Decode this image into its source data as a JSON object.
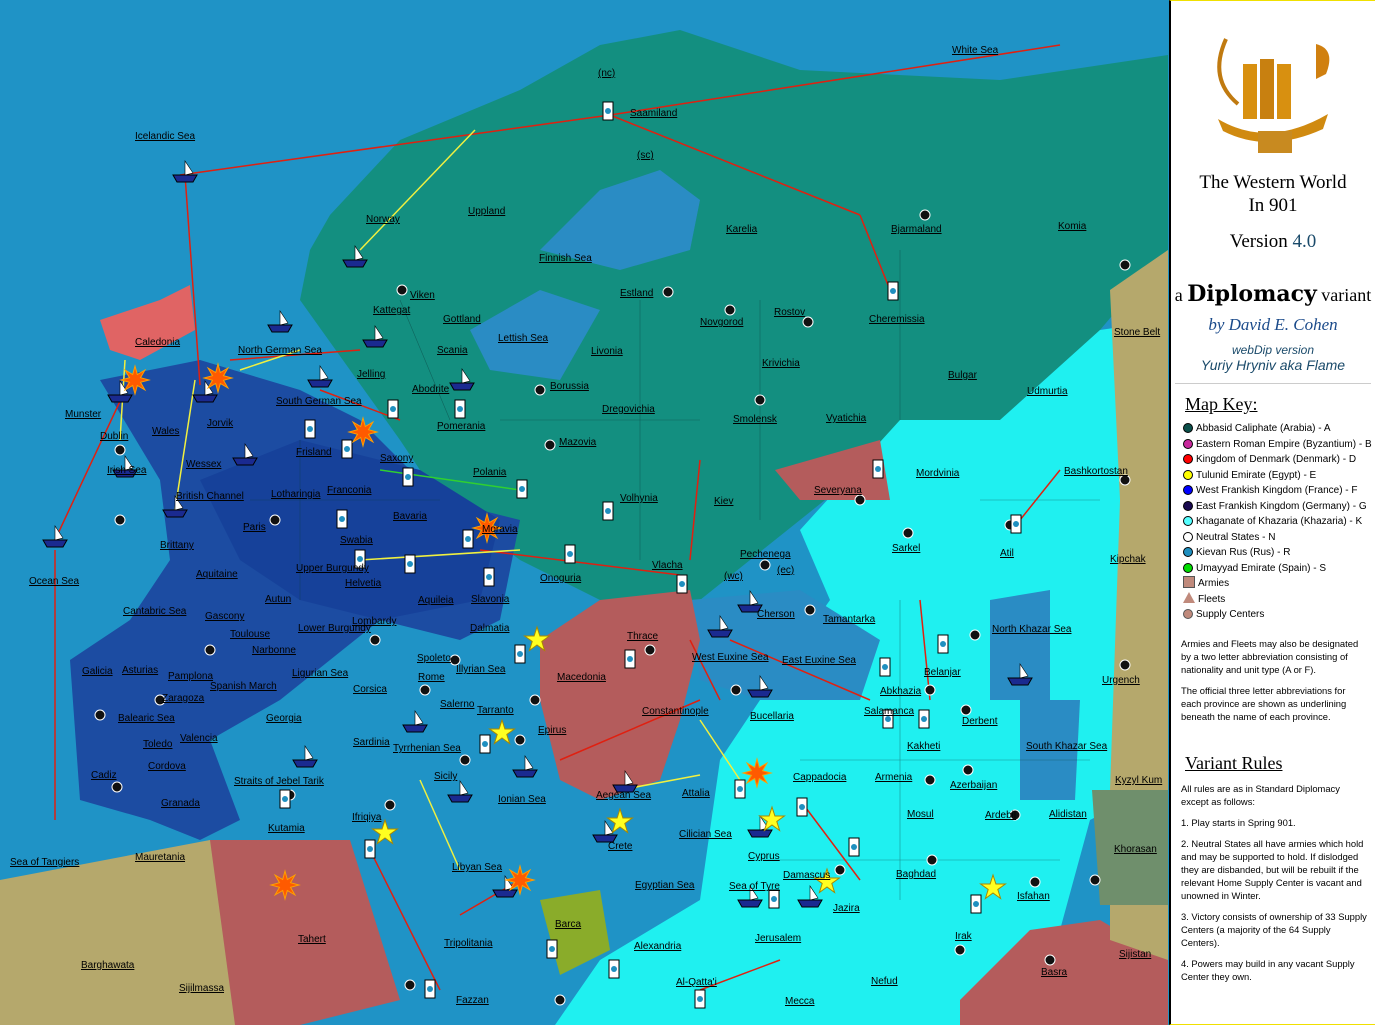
{
  "sidebar": {
    "title_line1": "The Western World",
    "title_line2": "In 901",
    "version_label": "Version",
    "version_number": "4.0",
    "diplomacy_prefix": "a",
    "diplomacy_word": "Diplomacy",
    "diplomacy_suffix": "variant",
    "author": "by David E. Cohen",
    "webdip_label": "webDip version",
    "webdip_author": "Yuriy Hryniv aka Flame",
    "map_key_heading": "Map Key:",
    "key_items": [
      {
        "label": "Abbasid Caliphate (Arabia) - A",
        "color": "#0b4f4a"
      },
      {
        "label": "Eastern Roman Empire (Byzantium) - B",
        "color": "#c8289c"
      },
      {
        "label": "Kingdom of Denmark (Denmark) - D",
        "color": "#ff0000"
      },
      {
        "label": "Tulunid Emirate (Egypt) - E",
        "color": "#ffff00"
      },
      {
        "label": "West Frankish Kingdom (France) - F",
        "color": "#0000ff"
      },
      {
        "label": "East Frankish Kingdom (Germany) - G",
        "color": "#1a0a50"
      },
      {
        "label": "Khaganate of Khazaria (Khazaria) - K",
        "color": "#55ffff"
      },
      {
        "label": "Neutral States - N",
        "color": "#ffffff"
      },
      {
        "label": "Kievan Rus (Rus) - R",
        "color": "#1f8fbf"
      },
      {
        "label": "Umayyad Emirate (Spain) - S",
        "color": "#00dd00"
      }
    ],
    "legend_armies": "Armies",
    "legend_fleets": "Fleets",
    "legend_supply": "Supply Centers",
    "note1": "Armies and Fleets may also be designated by a two letter abbreviation consisting of nationality and unit type (A or F).",
    "note2": "The official three letter abbreviations for each province are shown as underlining beneath the name of each province.",
    "rules_heading": "Variant Rules",
    "rules_intro": "All rules are as in Standard Diplomacy except as follows:",
    "rules": [
      "1. Play starts in Spring 901.",
      "2. Neutral States all have armies which hold and may be supported to hold.  If dislodged they are disbanded, but will be rebuilt if the relevant Home Supply Center is vacant and unowned in Winter.",
      "3. Victory consists of ownership of 33 Supply Centers (a majority of the 64 Supply Centers).",
      "4. Powers may build in any vacant Supply Center they own."
    ]
  },
  "map": {
    "colors": {
      "ocean": "#1f93c6",
      "inner_sea": "#2a8cc4",
      "rus": "#138f80",
      "khazaria": "#1ff0f0",
      "frankish": "#1c4ca2",
      "frankish_dark": "#16419a",
      "byzantium": "#b45c5c",
      "neutral": "#b5a86c",
      "khorasan": "#6f8f6c",
      "barca": "#8aac2a",
      "caledonia": "#e06464",
      "orders": "#e02010",
      "support": "#f0f040"
    },
    "provinces": [
      "White Sea",
      "(nc)",
      "Saamiland",
      "(sc)",
      "Icelandic Sea",
      "Norway",
      "Uppland",
      "Finnish Sea",
      "Karelia",
      "Bjarmaland",
      "Komia",
      "Viken",
      "Kattegat",
      "Gottland",
      "Scania",
      "Lettish Sea",
      "Estland",
      "Novgorod",
      "Rostov",
      "Cheremissia",
      "Livonia",
      "Krivichia",
      "Stone Belt",
      "Caledonia",
      "North German Sea",
      "Jelling",
      "Abodrite",
      "Borussia",
      "Bulgar",
      "Udmurtia",
      "Munster",
      "Dublin",
      "Wales",
      "Irish Sea",
      "Wessex",
      "Jorvik",
      "South German Sea",
      "Frisland",
      "Saxony",
      "Pomerania",
      "Polania",
      "Mazovia",
      "Dregovichia",
      "Smolensk",
      "Vyatichia",
      "Mordvinia",
      "Bashkortostan",
      "British Channel",
      "Lotharingia",
      "Franconia",
      "Bavaria",
      "Volhynia",
      "Kiev",
      "Severyana",
      "Paris",
      "Brittany",
      "Swabia",
      "Moravia",
      "Sarkel",
      "Atil",
      "Kipchak",
      "Ocean Sea",
      "Aquitaine",
      "Upper Burgundy",
      "Helvetia",
      "Slavonia",
      "Onoguria",
      "Vlacha",
      "Pechenega",
      "(wc)",
      "(ec)",
      "Autun",
      "Aquileia",
      "Cantabric Sea",
      "Gascony",
      "Toulouse",
      "Lower Burgundy",
      "Lombardy",
      "Dalmatia",
      "Thrace",
      "Cherson",
      "Tamantarka",
      "Narbonne",
      "Spoleto",
      "North Khazar Sea",
      "Galicia",
      "Asturias",
      "Pamplona",
      "Ligurian Sea",
      "Illyrian Sea",
      "Rome",
      "Macedonia",
      "West Euxine Sea",
      "East Euxine Sea",
      "Belanjar",
      "Urgench",
      "Zaragoza",
      "Spanish March",
      "Corsica",
      "Salerno",
      "Tarranto",
      "Constantinople",
      "Bucellaria",
      "Abkhazia",
      "Salamanca",
      "Balearic Sea",
      "Georgia",
      "Derbent",
      "Toledo",
      "Valencia",
      "Sardinia",
      "Tyrrhenian Sea",
      "Epirus",
      "Kakheti",
      "South Khazar Sea",
      "Cordova",
      "Cadiz",
      "Straits of Jebel Tarik",
      "Sicily",
      "Cappadocia",
      "Armenia",
      "Azerbaijan",
      "Kyzyl Kum",
      "Granada",
      "Ionian Sea",
      "Aegean Sea",
      "Attalia",
      "Ardebil",
      "Alidistan",
      "Kutamia",
      "Ifriqiya",
      "Crete",
      "Cilician Sea",
      "Mosul",
      "Cyprus",
      "Sea of Tangiers",
      "Mauretania",
      "Libyan Sea",
      "Damascus",
      "Baghdad",
      "Khorasan",
      "Egyptian Sea",
      "Sea of Tyre",
      "Jazira",
      "Isfahan",
      "Tahert",
      "Barca",
      "Irak",
      "Jerusalem",
      "Barghawata",
      "Tripolitania",
      "Alexandria",
      "Nefud",
      "Sijistan",
      "Sijilmassa",
      "Fazzan",
      "Al-Qatta'i",
      "Mecca",
      "Basra"
    ]
  }
}
